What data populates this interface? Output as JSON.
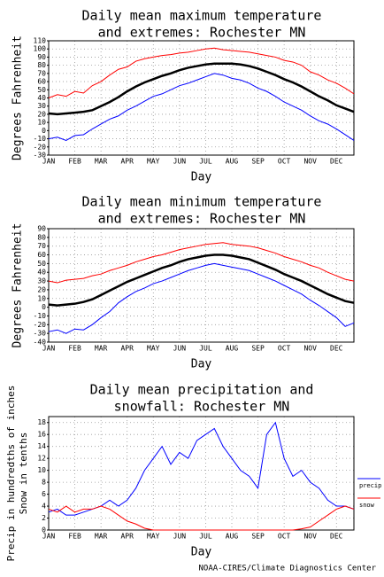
{
  "chart_data": [
    {
      "type": "line",
      "title": [
        "Daily mean maximum temperature",
        "and extremes: Rochester MN"
      ],
      "xlabel": "Day",
      "ylabel": [
        "Degrees Fahrenheit"
      ],
      "categories": [
        "JAN",
        null,
        null,
        "FEB",
        null,
        null,
        "MAR",
        null,
        null,
        "APR",
        null,
        null,
        "MAY",
        null,
        null,
        "JUN",
        null,
        null,
        "JUL",
        null,
        null,
        "AUG",
        null,
        null,
        "SEP",
        null,
        null,
        "OCT",
        null,
        null,
        "NOV",
        null,
        null,
        "DEC",
        null,
        null
      ],
      "ylim": [
        -30,
        110
      ],
      "yticks": [
        -30,
        -20,
        -10,
        0,
        10,
        20,
        30,
        40,
        50,
        60,
        70,
        80,
        90,
        100,
        110
      ],
      "grid": true,
      "series": [
        {
          "color": "#ff0000",
          "width": 1,
          "values": [
            40,
            44,
            42,
            48,
            46,
            55,
            60,
            68,
            75,
            78,
            85,
            88,
            90,
            92,
            93,
            95,
            96,
            98,
            100,
            101,
            99,
            98,
            97,
            96,
            94,
            92,
            90,
            86,
            84,
            80,
            72,
            68,
            62,
            58,
            52,
            45
          ]
        },
        {
          "color": "#000000",
          "width": 2.5,
          "values": [
            21,
            20,
            21,
            22,
            23,
            25,
            30,
            35,
            41,
            48,
            54,
            59,
            63,
            67,
            70,
            74,
            77,
            79,
            81,
            82,
            82,
            82,
            81,
            79,
            76,
            72,
            68,
            63,
            59,
            54,
            48,
            42,
            37,
            31,
            27,
            23
          ]
        },
        {
          "color": "#0000ff",
          "width": 1,
          "values": [
            -10,
            -8,
            -12,
            -6,
            -5,
            2,
            8,
            14,
            18,
            25,
            30,
            36,
            42,
            45,
            50,
            55,
            58,
            62,
            66,
            70,
            68,
            64,
            62,
            58,
            52,
            48,
            42,
            35,
            30,
            25,
            18,
            12,
            8,
            2,
            -5,
            -12
          ]
        }
      ]
    },
    {
      "type": "line",
      "title": [
        "Daily mean minimum temperature",
        "and extremes: Rochester MN"
      ],
      "xlabel": "Day",
      "ylabel": [
        "Degrees Fahrenheit"
      ],
      "categories": [
        "JAN",
        null,
        null,
        "FEB",
        null,
        null,
        "MAR",
        null,
        null,
        "APR",
        null,
        null,
        "MAY",
        null,
        null,
        "JUN",
        null,
        null,
        "JUL",
        null,
        null,
        "AUG",
        null,
        null,
        "SEP",
        null,
        null,
        "OCT",
        null,
        null,
        "NOV",
        null,
        null,
        "DEC",
        null,
        null
      ],
      "ylim": [
        -40,
        90
      ],
      "yticks": [
        -40,
        -30,
        -20,
        -10,
        0,
        10,
        20,
        30,
        40,
        50,
        60,
        70,
        80,
        90
      ],
      "grid": true,
      "series": [
        {
          "color": "#ff0000",
          "width": 1,
          "values": [
            30,
            28,
            31,
            32,
            33,
            36,
            38,
            42,
            45,
            48,
            52,
            55,
            58,
            60,
            63,
            66,
            68,
            70,
            72,
            73,
            74,
            72,
            71,
            70,
            68,
            65,
            62,
            58,
            55,
            52,
            48,
            45,
            40,
            36,
            32,
            30
          ]
        },
        {
          "color": "#000000",
          "width": 2.5,
          "values": [
            3,
            2,
            3,
            4,
            6,
            9,
            14,
            19,
            24,
            29,
            33,
            37,
            41,
            45,
            48,
            52,
            55,
            57,
            59,
            60,
            60,
            59,
            57,
            55,
            51,
            47,
            43,
            38,
            34,
            30,
            25,
            20,
            15,
            11,
            7,
            5
          ]
        },
        {
          "color": "#0000ff",
          "width": 1,
          "values": [
            -28,
            -26,
            -30,
            -25,
            -26,
            -20,
            -12,
            -5,
            5,
            12,
            18,
            22,
            27,
            30,
            34,
            38,
            42,
            45,
            48,
            50,
            48,
            46,
            44,
            42,
            38,
            34,
            30,
            25,
            20,
            15,
            8,
            2,
            -5,
            -12,
            -22,
            -18
          ]
        }
      ]
    },
    {
      "type": "line",
      "title": [
        "Daily mean precipitation and",
        "snowfall: Rochester MN"
      ],
      "xlabel": "Day",
      "ylabel": [
        "Precip in hundredths of inches",
        "Snow in tenths"
      ],
      "categories": [
        "JAN",
        null,
        null,
        "FEB",
        null,
        null,
        "MAR",
        null,
        null,
        "APR",
        null,
        null,
        "MAY",
        null,
        null,
        "JUN",
        null,
        null,
        "JUL",
        null,
        null,
        "AUG",
        null,
        null,
        "SEP",
        null,
        null,
        "OCT",
        null,
        null,
        "NOV",
        null,
        null,
        "DEC",
        null,
        null
      ],
      "ylim": [
        0,
        19
      ],
      "yticks": [
        0,
        2,
        4,
        6,
        8,
        10,
        12,
        14,
        16,
        18
      ],
      "grid": true,
      "series": [
        {
          "name": "precip",
          "color": "#0000ff",
          "width": 1,
          "values": [
            3,
            3.5,
            2.5,
            2.5,
            3,
            3.5,
            4,
            5,
            4,
            5,
            7,
            10,
            12,
            14,
            11,
            13,
            12,
            15,
            16,
            17,
            14,
            12,
            10,
            9,
            7,
            16,
            18,
            12,
            9,
            10,
            8,
            7,
            5,
            4,
            4,
            3.5
          ]
        },
        {
          "name": "snow",
          "color": "#ff0000",
          "width": 1,
          "values": [
            3.5,
            3,
            4,
            3,
            3.5,
            3.5,
            4,
            3.5,
            2.5,
            1.5,
            1,
            0.3,
            0,
            0,
            0,
            0,
            0,
            0,
            0,
            0,
            0,
            0,
            0,
            0,
            0,
            0,
            0,
            0,
            0,
            0.2,
            0.5,
            1.5,
            2.5,
            3.5,
            4,
            3.5
          ]
        }
      ]
    }
  ],
  "footer": "NOAA-CIRES/Climate Diagnostics Center"
}
